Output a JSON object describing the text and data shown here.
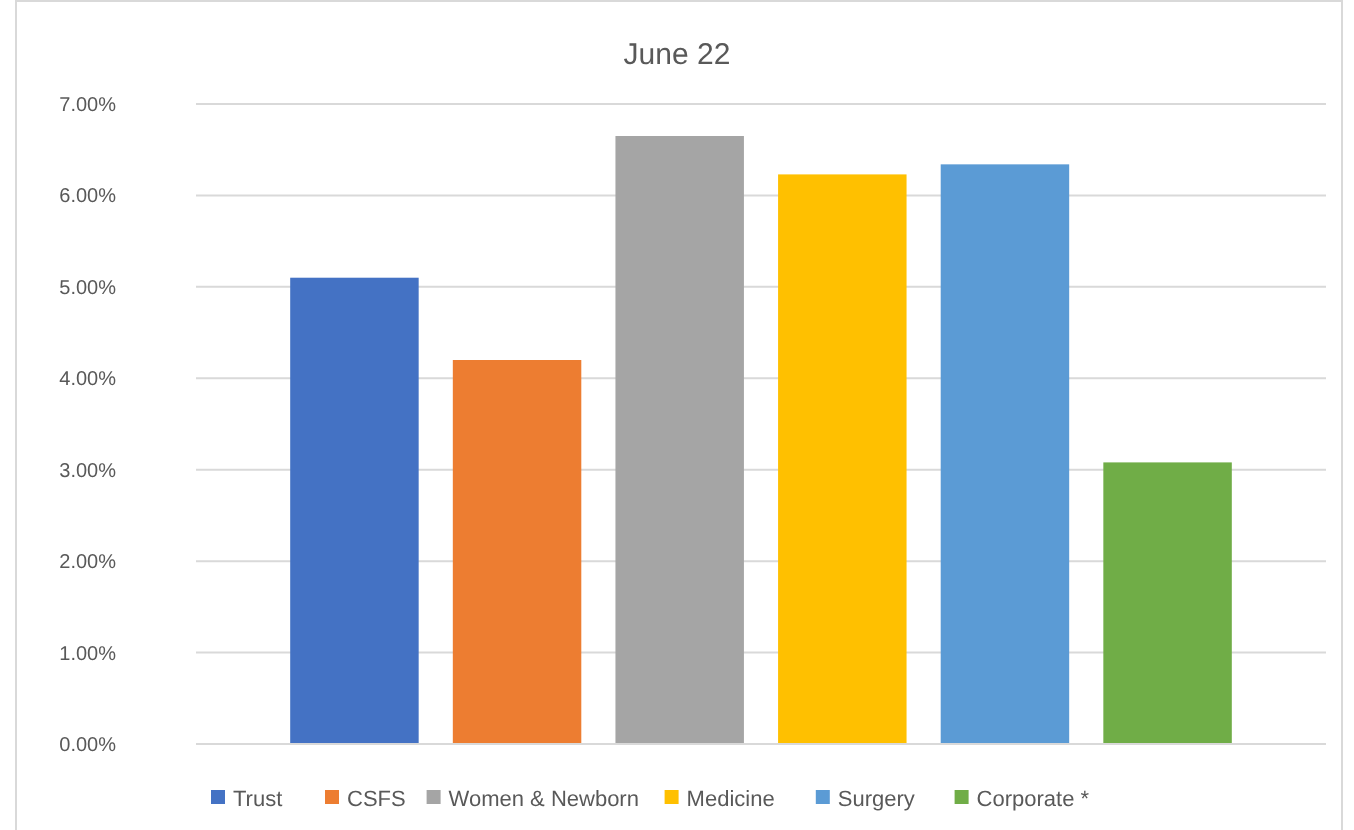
{
  "chart_data": {
    "type": "bar",
    "title": "June 22",
    "categories": [
      null
    ],
    "series": [
      {
        "name": "Trust",
        "color": "#4472c4",
        "values": [
          5.1
        ]
      },
      {
        "name": "CSFS",
        "color": "#ed7d31",
        "values": [
          4.2
        ]
      },
      {
        "name": "Women & Newborn",
        "color": "#a5a5a5",
        "values": [
          6.65
        ]
      },
      {
        "name": "Medicine",
        "color": "#ffc000",
        "values": [
          6.23
        ]
      },
      {
        "name": "Surgery",
        "color": "#5b9bd5",
        "values": [
          6.34
        ]
      },
      {
        "name": "Corporate *",
        "color": "#70ad47",
        "values": [
          3.08
        ]
      }
    ],
    "ylim": [
      0,
      7
    ],
    "yticks": [
      {
        "value": 0,
        "label": "0.00%"
      },
      {
        "value": 1,
        "label": "1.00%"
      },
      {
        "value": 2,
        "label": "2.00%"
      },
      {
        "value": 3,
        "label": "3.00%"
      },
      {
        "value": 4,
        "label": "4.00%"
      },
      {
        "value": 5,
        "label": "5.00%"
      },
      {
        "value": 6,
        "label": "6.00%"
      },
      {
        "value": 7,
        "label": "7.00%"
      }
    ],
    "grid": "y",
    "legend": "bottom"
  }
}
